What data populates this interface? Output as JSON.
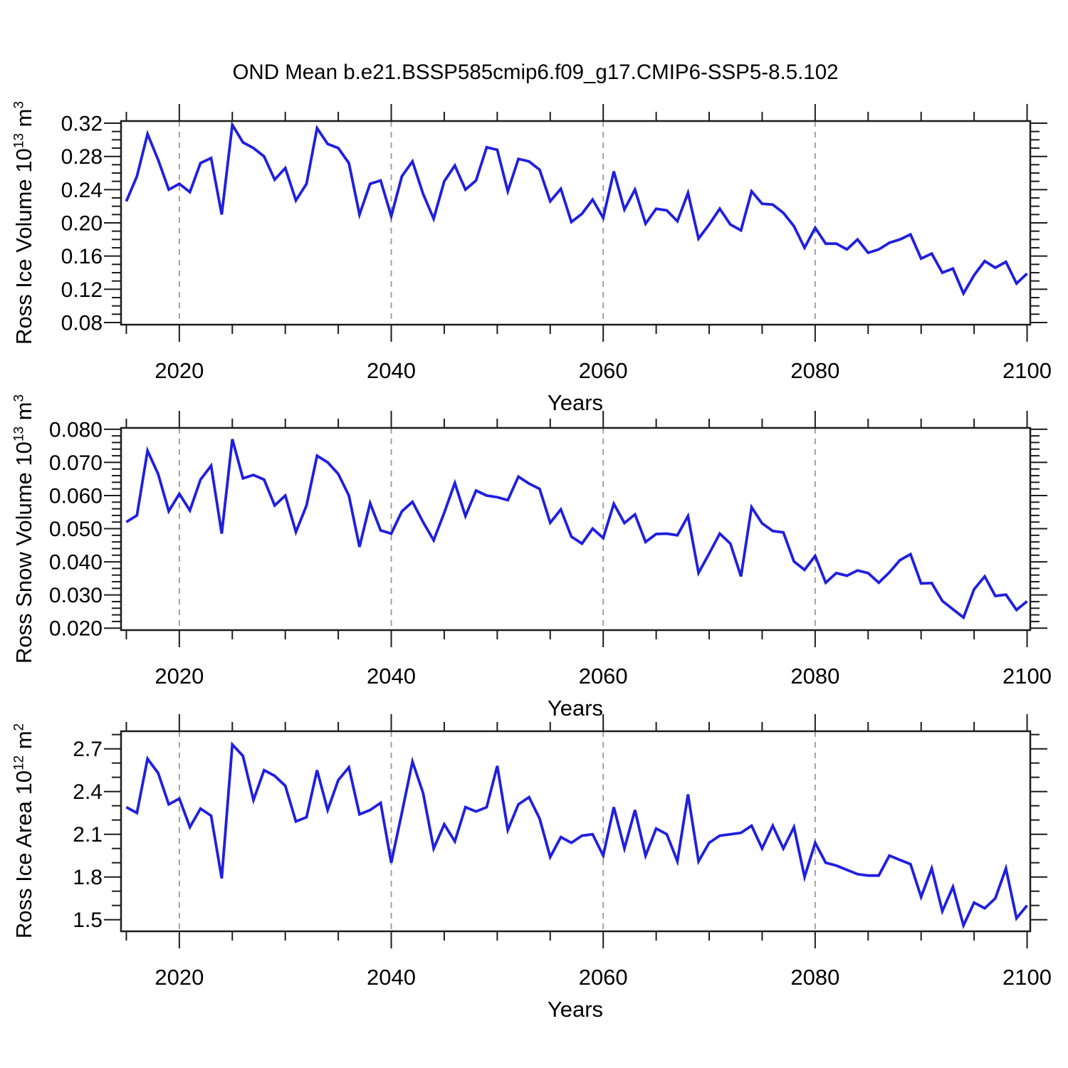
{
  "title": "OND Mean b.e21.BSSP585cmip6.f09_g17.CMIP6-SSP5-8.5.102",
  "colors": {
    "line": "#1f1fe0",
    "grid": "#999999",
    "frame": "#1c1c1c"
  },
  "chart_data": {
    "type": "line",
    "x_label": "Years",
    "x_major_ticks": [
      2020,
      2040,
      2060,
      2080,
      2100
    ],
    "x_minor_step": 5,
    "grid_years": [
      2020,
      2040,
      2060,
      2080
    ],
    "xlim": [
      2014.5,
      2100.3
    ],
    "legend": "none",
    "x": [
      2015,
      2016,
      2017,
      2018,
      2019,
      2020,
      2021,
      2022,
      2023,
      2024,
      2025,
      2026,
      2027,
      2028,
      2029,
      2030,
      2031,
      2032,
      2033,
      2034,
      2035,
      2036,
      2037,
      2038,
      2039,
      2040,
      2041,
      2042,
      2043,
      2044,
      2045,
      2046,
      2047,
      2048,
      2049,
      2050,
      2051,
      2052,
      2053,
      2054,
      2055,
      2056,
      2057,
      2058,
      2059,
      2060,
      2061,
      2062,
      2063,
      2064,
      2065,
      2066,
      2067,
      2068,
      2069,
      2070,
      2071,
      2072,
      2073,
      2074,
      2075,
      2076,
      2077,
      2078,
      2079,
      2080,
      2081,
      2082,
      2083,
      2084,
      2085,
      2086,
      2087,
      2088,
      2089,
      2090,
      2091,
      2092,
      2093,
      2094,
      2095,
      2096,
      2097,
      2098,
      2099,
      2100
    ],
    "panels": [
      {
        "id": "ice-volume",
        "name": "Ross Ice Volume",
        "ylabel": {
          "base": "Ross Ice Volume 10",
          "exp": "13",
          "mid": " m",
          "exp2": "3"
        },
        "ylim": [
          0.0774,
          0.3226
        ],
        "ytick_values": [
          0.08,
          0.12,
          0.16,
          0.2,
          0.24,
          0.28,
          0.32
        ],
        "ytick_labels": [
          "0.08",
          "0.12",
          "0.16",
          "0.20",
          "0.24",
          "0.28",
          "0.32"
        ],
        "y_minor_step": 0.01,
        "values": [
          0.226,
          0.256,
          0.307,
          0.276,
          0.24,
          0.247,
          0.237,
          0.272,
          0.278,
          0.21,
          0.318,
          0.297,
          0.29,
          0.28,
          0.252,
          0.266,
          0.227,
          0.247,
          0.314,
          0.295,
          0.29,
          0.272,
          0.21,
          0.247,
          0.251,
          0.208,
          0.256,
          0.274,
          0.235,
          0.205,
          0.25,
          0.269,
          0.24,
          0.251,
          0.291,
          0.288,
          0.238,
          0.277,
          0.274,
          0.264,
          0.226,
          0.241,
          0.201,
          0.211,
          0.228,
          0.206,
          0.262,
          0.216,
          0.24,
          0.199,
          0.217,
          0.215,
          0.202,
          0.236,
          0.181,
          0.198,
          0.217,
          0.198,
          0.191,
          0.238,
          0.223,
          0.222,
          0.212,
          0.196,
          0.17,
          0.194,
          0.175,
          0.175,
          0.168,
          0.18,
          0.164,
          0.168,
          0.176,
          0.18,
          0.186,
          0.157,
          0.163,
          0.14,
          0.145,
          0.115,
          0.137,
          0.154,
          0.146,
          0.153,
          0.127,
          0.139
        ]
      },
      {
        "id": "snow-volume",
        "name": "Ross Snow Volume",
        "ylabel": {
          "base": "Ross Snow Volume 10",
          "exp": "13",
          "mid": " m",
          "exp2": "3"
        },
        "ylim": [
          0.0194,
          0.0804
        ],
        "ytick_values": [
          0.02,
          0.03,
          0.04,
          0.05,
          0.06,
          0.07,
          0.08
        ],
        "ytick_labels": [
          "0.020",
          "0.030",
          "0.040",
          "0.050",
          "0.060",
          "0.070",
          "0.080"
        ],
        "y_minor_step": 0.002,
        "values": [
          0.052,
          0.054,
          0.0735,
          0.0665,
          0.0553,
          0.0605,
          0.0555,
          0.0648,
          0.069,
          0.0485,
          0.077,
          0.0652,
          0.0662,
          0.0648,
          0.057,
          0.06,
          0.049,
          0.057,
          0.072,
          0.07,
          0.0665,
          0.06,
          0.0445,
          0.0577,
          0.0495,
          0.0485,
          0.0552,
          0.0581,
          0.052,
          0.0465,
          0.0548,
          0.0638,
          0.0538,
          0.0615,
          0.06,
          0.0595,
          0.0586,
          0.0657,
          0.0636,
          0.062,
          0.0518,
          0.0558,
          0.0476,
          0.0455,
          0.05,
          0.0472,
          0.0575,
          0.0517,
          0.0543,
          0.046,
          0.0484,
          0.0485,
          0.048,
          0.0538,
          0.0367,
          0.0425,
          0.0485,
          0.0455,
          0.0356,
          0.0565,
          0.0516,
          0.0493,
          0.0489,
          0.0401,
          0.0376,
          0.0418,
          0.0337,
          0.0366,
          0.0358,
          0.0374,
          0.0366,
          0.0337,
          0.0368,
          0.0405,
          0.0423,
          0.0335,
          0.0336,
          0.0282,
          0.0257,
          0.0232,
          0.0317,
          0.0356,
          0.0297,
          0.0301,
          0.0255,
          0.0281
        ]
      },
      {
        "id": "ice-area",
        "name": "Ross Ice Area",
        "ylabel": {
          "base": "Ross Ice Area 10",
          "exp": "12",
          "mid": " m",
          "exp2": "2"
        },
        "ylim": [
          1.4185,
          2.8235
        ],
        "ytick_values": [
          1.5,
          1.8,
          2.1,
          2.4,
          2.7
        ],
        "ytick_labels": [
          "1.5",
          "1.8",
          "2.1",
          "2.4",
          "2.7"
        ],
        "y_minor_step": 0.1,
        "values": [
          2.29,
          2.25,
          2.63,
          2.53,
          2.31,
          2.35,
          2.15,
          2.28,
          2.23,
          1.79,
          2.73,
          2.65,
          2.34,
          2.55,
          2.51,
          2.44,
          2.19,
          2.22,
          2.55,
          2.27,
          2.48,
          2.57,
          2.24,
          2.27,
          2.32,
          1.9,
          2.25,
          2.61,
          2.39,
          2.0,
          2.17,
          2.05,
          2.29,
          2.26,
          2.29,
          2.58,
          2.13,
          2.31,
          2.36,
          2.21,
          1.94,
          2.08,
          2.04,
          2.09,
          2.1,
          1.95,
          2.29,
          2.0,
          2.27,
          1.95,
          2.14,
          2.1,
          1.91,
          2.38,
          1.91,
          2.04,
          2.09,
          2.1,
          2.11,
          2.16,
          2.0,
          2.16,
          2.0,
          2.15,
          1.8,
          2.04,
          1.9,
          1.88,
          1.85,
          1.82,
          1.81,
          1.81,
          1.95,
          1.92,
          1.89,
          1.66,
          1.86,
          1.56,
          1.73,
          1.46,
          1.62,
          1.58,
          1.65,
          1.86,
          1.51,
          1.6
        ]
      }
    ]
  }
}
